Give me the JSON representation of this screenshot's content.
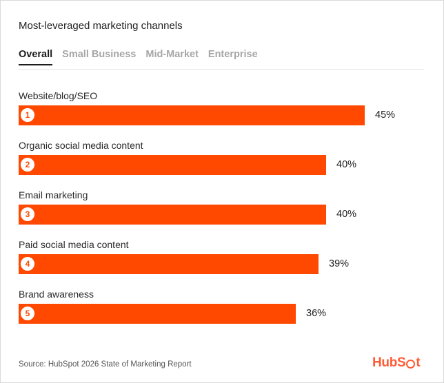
{
  "header": {
    "title": "Most-leveraged marketing channels"
  },
  "tabs": [
    {
      "label": "Overall",
      "active": true
    },
    {
      "label": "Small Business",
      "active": false
    },
    {
      "label": "Mid-Market",
      "active": false
    },
    {
      "label": "Enterprise",
      "active": false
    }
  ],
  "colors": {
    "bar": "#ff4800",
    "brand": "#ff5c35"
  },
  "chart_data": {
    "type": "bar",
    "orientation": "horizontal",
    "title": "Most-leveraged marketing channels",
    "categories": [
      "Website/blog/SEO",
      "Organic social media content",
      "Email marketing",
      "Paid social media content",
      "Brand awareness"
    ],
    "ranks": [
      "1",
      "2",
      "3",
      "4",
      "5"
    ],
    "values": [
      45,
      40,
      40,
      39,
      36
    ],
    "value_labels": [
      "45%",
      "40%",
      "40%",
      "39%",
      "36%"
    ],
    "unit": "%",
    "xlim": [
      0,
      45
    ],
    "grid": false,
    "legend": "none"
  },
  "footer": {
    "source": "Source: HubSpot 2026 State of Marketing Report",
    "logo_text_before": "HubS",
    "logo_text_after": "t"
  }
}
